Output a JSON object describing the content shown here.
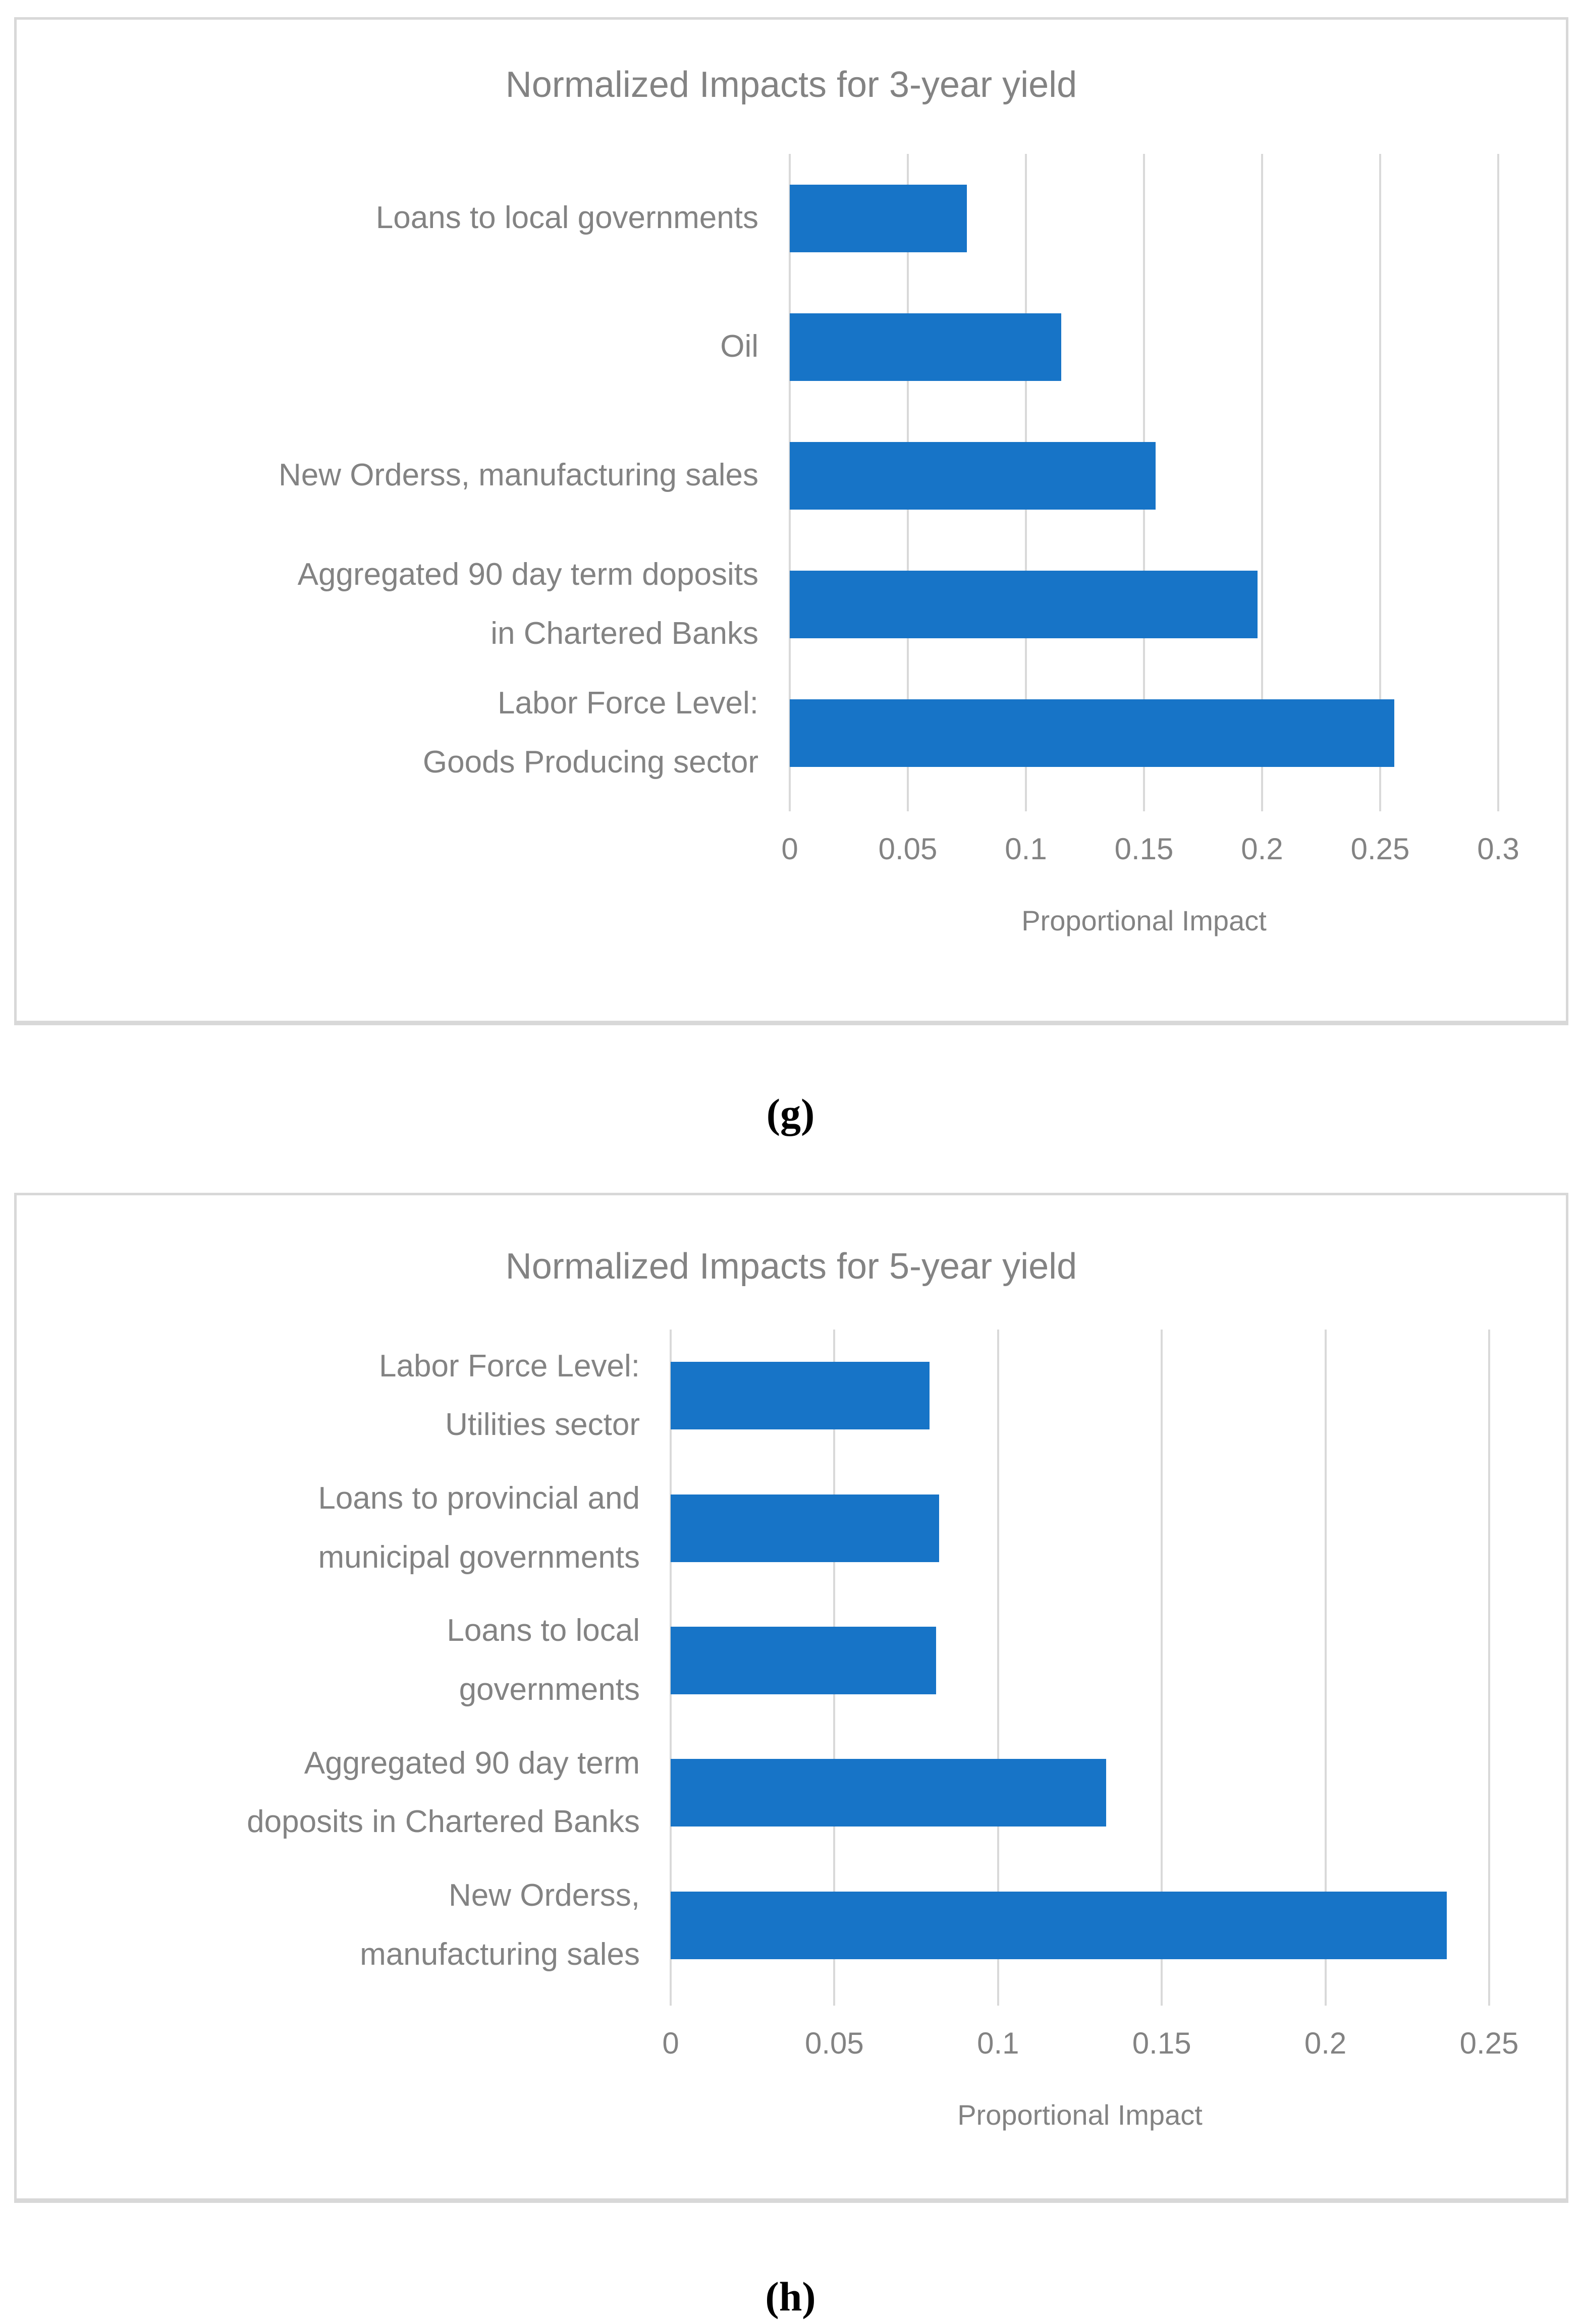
{
  "page": {
    "background": "#ffffff"
  },
  "colors": {
    "bar": "#1774C7",
    "gridline": "#D9D9D9",
    "card_border": "#D8D8D8",
    "chart_text": "#838383",
    "caption_text": "#000000"
  },
  "captions": {
    "g": "(g)",
    "h": "(h)"
  },
  "chart_data": [
    {
      "type": "bar",
      "orientation": "horizontal",
      "title": "Normalized Impacts for 3-year yield",
      "xlabel": "Proportional Impact",
      "ylabel": "",
      "categories": [
        "Loans to local governments",
        "Oil",
        "New Orderss, manufacturing sales",
        "Aggregated 90 day term doposits\nin Chartered Banks",
        "Labor Force Level:\nGoods Producing sector"
      ],
      "values": [
        0.075,
        0.115,
        0.155,
        0.198,
        0.256
      ],
      "xlim": [
        0,
        0.3
      ],
      "xticks": [
        0,
        0.05,
        0.1,
        0.15,
        0.2,
        0.25,
        0.3
      ],
      "xtick_labels": [
        "0",
        "0.05",
        "0.1",
        "0.15",
        "0.2",
        "0.25",
        "0.3"
      ],
      "grid": true,
      "legend": false,
      "bar_color": "#1774C7"
    },
    {
      "type": "bar",
      "orientation": "horizontal",
      "title": "Normalized Impacts for 5-year yield",
      "xlabel": "Proportional Impact",
      "ylabel": "",
      "categories": [
        "Labor Force Level:\nUtilities sector",
        "Loans to provincial and\nmunicipal governments",
        "Loans to local\ngovernments",
        "Aggregated 90 day term\ndoposits in Chartered Banks",
        "New Orderss,\nmanufacturing sales"
      ],
      "values": [
        0.079,
        0.082,
        0.081,
        0.133,
        0.237
      ],
      "xlim": [
        0,
        0.25
      ],
      "xticks": [
        0,
        0.05,
        0.1,
        0.15,
        0.2,
        0.25
      ],
      "xtick_labels": [
        "0",
        "0.05",
        "0.1",
        "0.15",
        "0.2",
        "0.25"
      ],
      "grid": true,
      "legend": false,
      "bar_color": "#1774C7"
    }
  ]
}
